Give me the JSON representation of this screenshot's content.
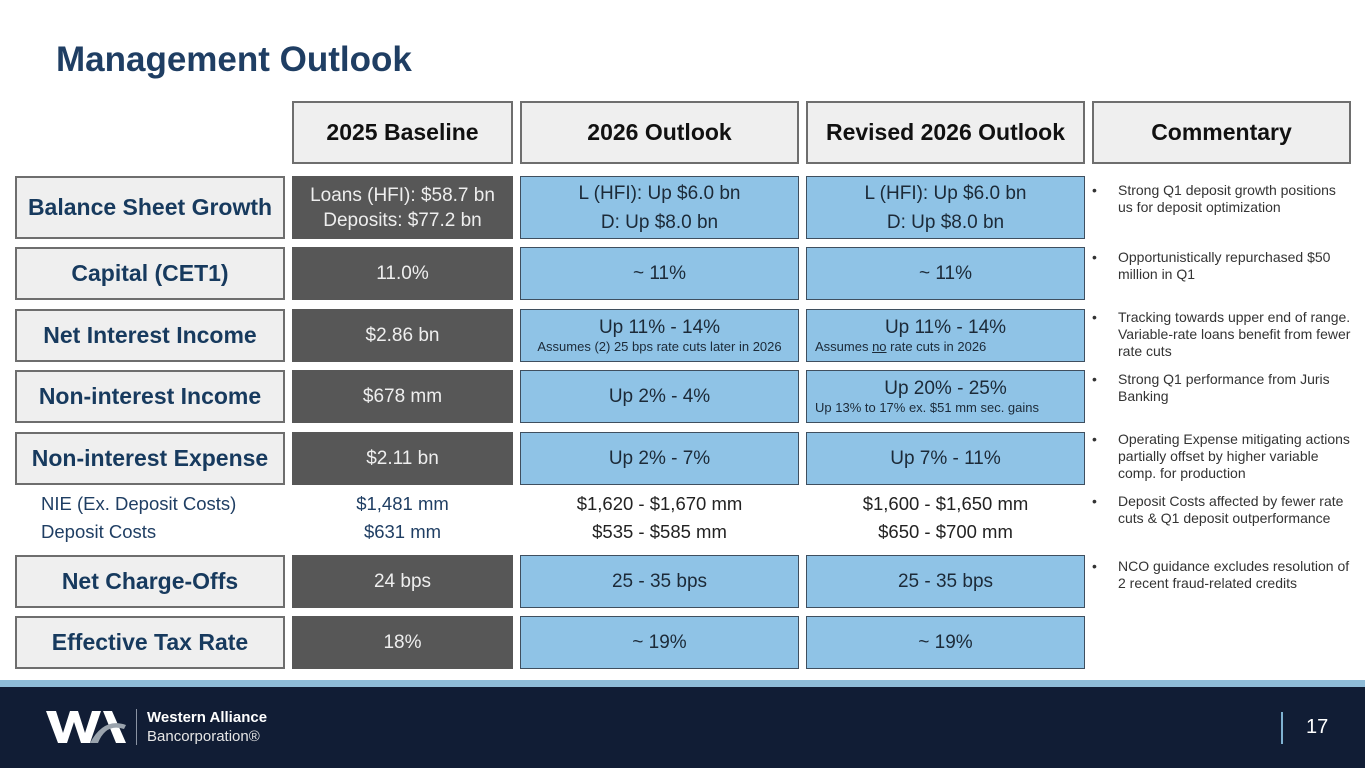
{
  "title": "Management Outlook",
  "headers": [
    "2025 Baseline",
    "2026 Outlook",
    "Revised 2026 Outlook",
    "Commentary"
  ],
  "rows": {
    "balance_sheet": {
      "label": "Balance Sheet Growth",
      "baseline": [
        "Loans (HFI): $58.7 bn",
        "Deposits: $77.2 bn"
      ],
      "outlook": [
        "L (HFI): Up $6.0 bn",
        "D: Up $8.0 bn"
      ],
      "revised": [
        "L (HFI): Up $6.0 bn",
        "D: Up $8.0 bn"
      ]
    },
    "capital": {
      "label": "Capital (CET1)",
      "baseline": "11.0%",
      "outlook": "~ 11%",
      "revised": "~ 11%"
    },
    "nii": {
      "label": "Net Interest Income",
      "baseline": "$2.86 bn",
      "outlook": "Up 11% - 14%",
      "outlook_note": "Assumes (2) 25 bps rate cuts later in 2026",
      "revised": "Up 11% - 14%",
      "revised_note_pre": "Assumes ",
      "revised_note_underline": "no",
      "revised_note_post": " rate cuts in 2026"
    },
    "non_ii": {
      "label": "Non-interest Income",
      "baseline": "$678 mm",
      "outlook": "Up 2% - 4%",
      "revised": "Up 20% - 25%",
      "revised_note": "Up 13% to 17% ex. $51 mm sec. gains"
    },
    "nie": {
      "label": "Non-interest Expense",
      "baseline": "$2.11 bn",
      "outlook": "Up 2% - 7%",
      "revised": "Up 7% - 11%"
    },
    "nie_breakdown": {
      "labels": [
        "NIE (Ex. Deposit Costs)",
        "Deposit Costs"
      ],
      "baseline": [
        "$1,481 mm",
        "$631 mm"
      ],
      "outlook": [
        "$1,620 - $1,670 mm",
        "$535 - $585 mm"
      ],
      "revised": [
        "$1,600 - $1,650 mm",
        "$650 - $700 mm"
      ]
    },
    "nco": {
      "label": "Net Charge-Offs",
      "baseline": "24 bps",
      "outlook": "25 - 35 bps",
      "revised": "25 - 35 bps"
    },
    "tax": {
      "label": "Effective Tax Rate",
      "baseline": "18%",
      "outlook": "~ 19%",
      "revised": "~ 19%"
    }
  },
  "commentary": [
    "Strong Q1 deposit growth positions us for deposit optimization",
    "Opportunistically repurchased $50 million in Q1",
    "Tracking towards upper end of range. Variable-rate loans benefit from fewer rate cuts",
    "Strong Q1 performance from Juris Banking",
    "Operating Expense mitigating actions partially offset by higher variable comp. for production",
    "Deposit Costs affected by fewer rate cuts & Q1 deposit outperformance",
    "NCO guidance excludes resolution of 2 recent fraud-related credits"
  ],
  "bullet": "•",
  "footer": {
    "company_line1": "Western Alliance",
    "company_line2": "Bancorporation®",
    "page_number": "17"
  },
  "colors": {
    "title": "#1f3e63",
    "baseline_cell": "#575757",
    "outlook_cell": "#8fc3e6",
    "header_cell": "#efefef",
    "footer": "#111d35",
    "footer_strip": "#8fbcd8"
  }
}
